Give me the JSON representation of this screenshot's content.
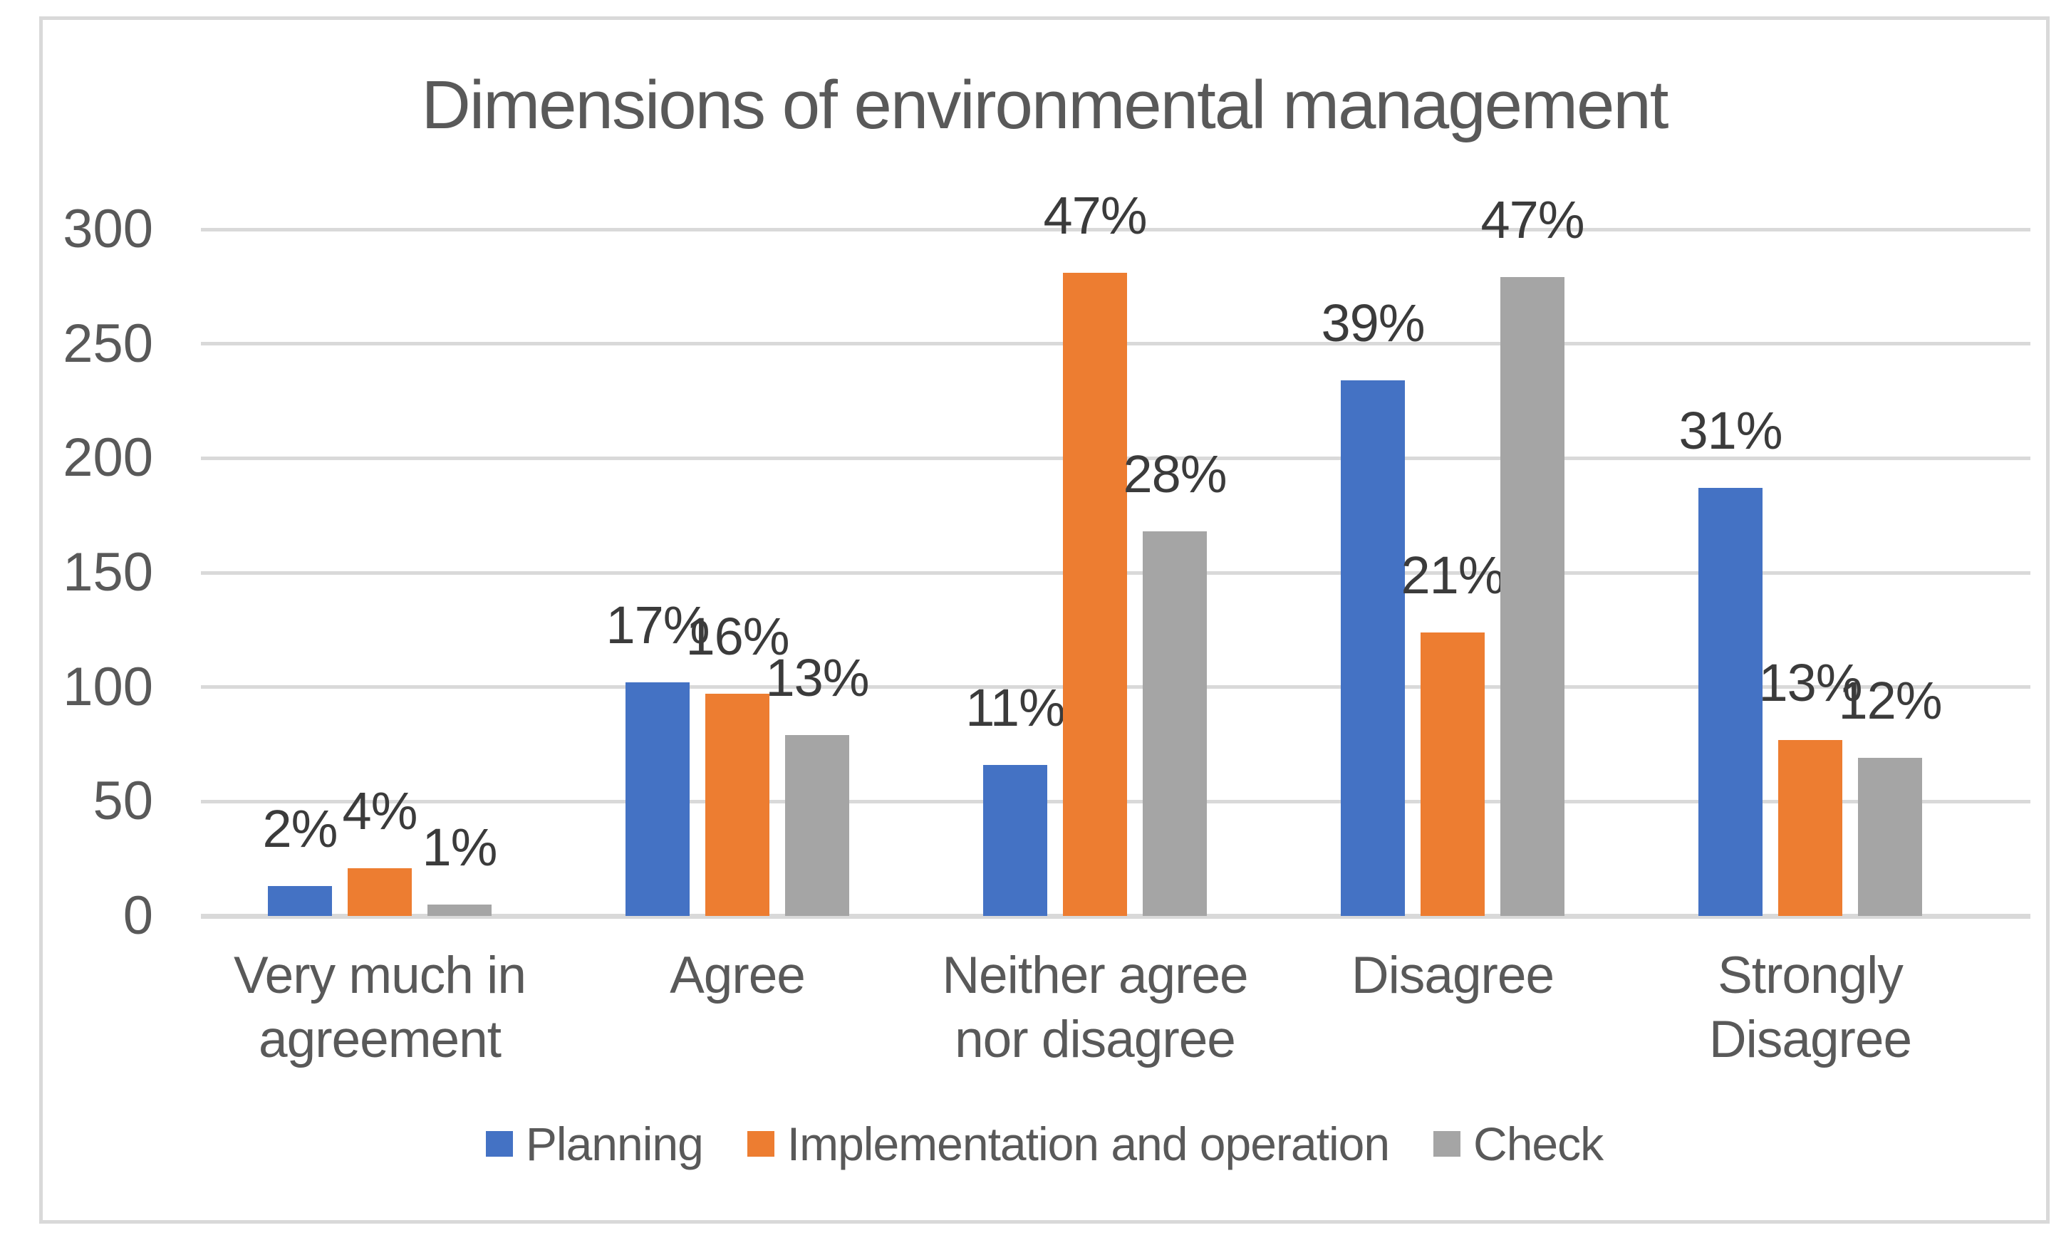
{
  "chart_data": {
    "type": "bar",
    "title": "Dimensions of environmental management",
    "categories": [
      "Very much in agreement",
      "Agree",
      "Neither agree nor disagree",
      "Disagree",
      "Strongly Disagree"
    ],
    "category_label_lines": [
      [
        "Very much in",
        "agreement"
      ],
      [
        "Agree"
      ],
      [
        "Neither agree",
        "nor disagree"
      ],
      [
        "Disagree"
      ],
      [
        "Strongly Disagree"
      ]
    ],
    "series": [
      {
        "name": "Planning",
        "color": "#4472C4",
        "values": [
          13,
          102,
          66,
          234,
          187
        ],
        "labels": [
          "2%",
          "17%",
          "11%",
          "39%",
          "31%"
        ]
      },
      {
        "name": "Implementation and operation",
        "color": "#ED7D31",
        "values": [
          21,
          97,
          281,
          124,
          77
        ],
        "labels": [
          "4%",
          "16%",
          "47%",
          "21%",
          "13%"
        ]
      },
      {
        "name": "Check",
        "color": "#A5A5A5",
        "values": [
          5,
          79,
          168,
          279,
          69
        ],
        "labels": [
          "1%",
          "13%",
          "28%",
          "47%",
          "12%"
        ]
      }
    ],
    "ylim": [
      0,
      300
    ],
    "yticks": [
      0,
      50,
      100,
      150,
      200,
      250,
      300
    ],
    "grid": true,
    "legend_position": "bottom",
    "xlabel": "",
    "ylabel": ""
  },
  "colors": {
    "background": "#FFFFFF",
    "border": "#D9D9D9",
    "gridline": "#D9D9D9",
    "axis_text": "#595959",
    "title_text": "#595959",
    "data_label_text": "#3B3B3B"
  }
}
